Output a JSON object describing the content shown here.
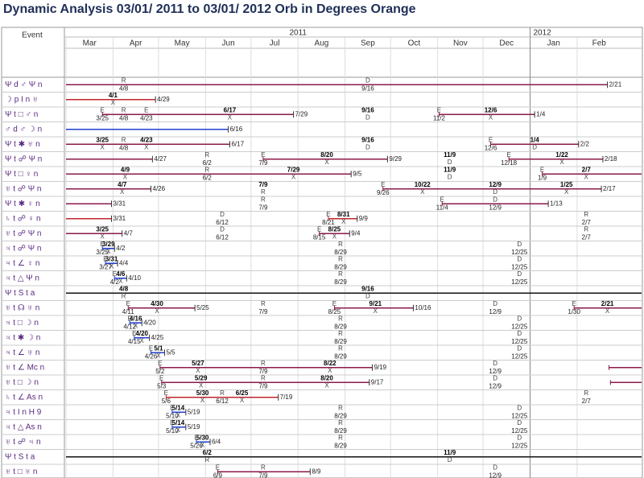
{
  "header": {
    "title": "Dynamic Analysis 03/01/ 2011 to 03/01/ 2012 Orb in Degrees Orange",
    "event_column": "Event",
    "years": [
      "2011",
      "2012"
    ],
    "months": [
      "Mar",
      "Apr",
      "May",
      "Jun",
      "Jul",
      "Aug",
      "Sep",
      "Oct",
      "Nov",
      "Dec",
      "Jan",
      "Feb"
    ]
  },
  "rows": [
    {
      "event": "Ψ d ♂ Ψ n",
      "spans": [
        {
          "from": null,
          "to": "2/21",
          "color": "#8b1a4a"
        }
      ],
      "labels": [
        {
          "letter": "R",
          "date": "4/8",
          "bold": false
        },
        {
          "letter": "D",
          "date": "9/16",
          "bold": false
        }
      ]
    },
    {
      "event": "☽ p I n ♅",
      "spans": [
        {
          "from": null,
          "to": "4/29",
          "color": "#c0272d"
        }
      ],
      "labels": [
        {
          "letter": "X",
          "date": "4/1",
          "bold": true
        }
      ]
    },
    {
      "event": "Ψ t □ ♂ n",
      "spans": [
        {
          "from": "3/25",
          "to": "7/29",
          "color": "#8b1a4a"
        },
        {
          "from": "11/2",
          "to": "1/4",
          "color": "#8b1a4a"
        }
      ],
      "labels": [
        {
          "letter": "E",
          "date": "3/25",
          "bold": false
        },
        {
          "letter": "R",
          "date": "4/8",
          "bold": false
        },
        {
          "letter": "E",
          "date": "4/23",
          "bold": false
        },
        {
          "letter": "X",
          "date": "6/17",
          "bold": true
        },
        {
          "letter": "D",
          "date": "9/16",
          "bold": true
        },
        {
          "letter": "E",
          "date": "11/2",
          "bold": false
        },
        {
          "letter": "X",
          "date": "12/6",
          "bold": true
        }
      ]
    },
    {
      "event": "♂ d ♂ ☽ n",
      "spans": [
        {
          "from": null,
          "to": "6/16",
          "color": "#1f3fd0"
        }
      ],
      "labels": []
    },
    {
      "event": "Ψ t ✱ ♅ n",
      "spans": [
        {
          "from": null,
          "to": "6/17",
          "color": "#8b1a4a"
        },
        {
          "from": "12/6",
          "to": "2/2",
          "color": "#8b1a4a"
        }
      ],
      "labels": [
        {
          "letter": "X",
          "date": "3/25",
          "bold": true
        },
        {
          "letter": "R",
          "date": "4/8",
          "bold": false
        },
        {
          "letter": "X",
          "date": "4/23",
          "bold": true
        },
        {
          "letter": "D",
          "date": "9/16",
          "bold": true
        },
        {
          "letter": "E",
          "date": "12/6",
          "bold": false
        },
        {
          "letter": "D",
          "date": "1/4",
          "bold": true
        }
      ]
    },
    {
      "event": "Ψ t ☍ Ψ n",
      "spans": [
        {
          "from": null,
          "to": "4/27",
          "color": "#8b1a4a"
        },
        {
          "from": "7/9",
          "to": "9/29",
          "color": "#8b1a4a"
        },
        {
          "from": "12/18",
          "to": "2/18",
          "color": "#8b1a4a"
        }
      ],
      "labels": [
        {
          "letter": "R",
          "date": "6/2",
          "bold": false
        },
        {
          "letter": "E",
          "date": "7/9",
          "bold": false
        },
        {
          "letter": "X",
          "date": "8/20",
          "bold": true
        },
        {
          "letter": "D",
          "date": "11/9",
          "bold": true
        },
        {
          "letter": "E",
          "date": "12/18",
          "bold": false
        },
        {
          "letter": "X",
          "date": "1/22",
          "bold": true
        }
      ]
    },
    {
      "event": "Ψ t □ ♀ n",
      "spans": [
        {
          "from": null,
          "to": "9/5",
          "color": "#8b1a4a"
        },
        {
          "from": "1/9",
          "to": null,
          "color": "#8b1a4a"
        }
      ],
      "labels": [
        {
          "letter": "X",
          "date": "4/9",
          "bold": true
        },
        {
          "letter": "R",
          "date": "6/2",
          "bold": false
        },
        {
          "letter": "X",
          "date": "7/29",
          "bold": true
        },
        {
          "letter": "D",
          "date": "11/9",
          "bold": true
        },
        {
          "letter": "E",
          "date": "1/9",
          "bold": false
        },
        {
          "letter": "X",
          "date": "2/7",
          "bold": true
        }
      ]
    },
    {
      "event": "♅ t ☍ Ψ n",
      "spans": [
        {
          "from": null,
          "to": "4/26",
          "color": "#8b1a4a"
        },
        {
          "from": "9/26",
          "to": "2/17",
          "color": "#8b1a4a"
        }
      ],
      "labels": [
        {
          "letter": "X",
          "date": "4/7",
          "bold": true
        },
        {
          "letter": "R",
          "date": "7/9",
          "bold": true
        },
        {
          "letter": "E",
          "date": "9/26",
          "bold": false
        },
        {
          "letter": "X",
          "date": "10/22",
          "bold": true
        },
        {
          "letter": "D",
          "date": "12/9",
          "bold": true
        },
        {
          "letter": "X",
          "date": "1/25",
          "bold": true
        }
      ]
    },
    {
      "event": "Ψ t ✱ ♀ n",
      "spans": [
        {
          "from": null,
          "to": "3/31",
          "color": "#8b1a4a"
        },
        {
          "from": "11/4",
          "to": "1/13",
          "color": "#8b1a4a"
        }
      ],
      "labels": [
        {
          "letter": "R",
          "date": "7/9",
          "bold": false
        },
        {
          "letter": "E",
          "date": "11/4",
          "bold": false
        },
        {
          "letter": "D",
          "date": "12/9",
          "bold": false
        }
      ]
    },
    {
      "event": "♄ t ☍ ♀ n",
      "spans": [
        {
          "from": null,
          "to": "3/31",
          "color": "#c0272d"
        },
        {
          "from": "8/21",
          "to": "9/9",
          "color": "#c0272d"
        }
      ],
      "labels": [
        {
          "letter": "D",
          "date": "6/12",
          "bold": false
        },
        {
          "letter": "E",
          "date": "8/21",
          "bold": false
        },
        {
          "letter": "X",
          "date": "8/31",
          "bold": true
        },
        {
          "letter": "R",
          "date": "2/7",
          "bold": false
        }
      ]
    },
    {
      "event": "♅ t ☍ Ψ n",
      "spans": [
        {
          "from": null,
          "to": "4/7",
          "color": "#8b1a4a"
        },
        {
          "from": "8/15",
          "to": "9/4",
          "color": "#8b1a4a"
        }
      ],
      "labels": [
        {
          "letter": "X",
          "date": "3/25",
          "bold": true
        },
        {
          "letter": "D",
          "date": "6/12",
          "bold": false
        },
        {
          "letter": "E",
          "date": "8/15",
          "bold": false
        },
        {
          "letter": "X",
          "date": "8/25",
          "bold": true
        },
        {
          "letter": "R",
          "date": "2/7",
          "bold": false
        }
      ]
    },
    {
      "event": "♃ t ☍ Ψ n",
      "spans": [
        {
          "from": "3/25",
          "to": "4/2",
          "color": "#1f3fd0"
        }
      ],
      "labels": [
        {
          "letter": "E",
          "date": "3/25",
          "bold": false
        },
        {
          "letter": "X",
          "date": "3/29",
          "bold": true
        },
        {
          "letter": "R",
          "date": "8/29",
          "bold": false
        },
        {
          "letter": "D",
          "date": "12/25",
          "bold": false
        }
      ]
    },
    {
      "event": "♃ t ∠ ♀ n",
      "spans": [
        {
          "from": "3/27",
          "to": "4/4",
          "color": "#1f3fd0"
        }
      ],
      "labels": [
        {
          "letter": "E",
          "date": "3/27",
          "bold": false
        },
        {
          "letter": "X",
          "date": "3/31",
          "bold": true
        },
        {
          "letter": "R",
          "date": "8/29",
          "bold": false
        },
        {
          "letter": "D",
          "date": "12/25",
          "bold": false
        }
      ]
    },
    {
      "event": "♃ t △ Ψ n",
      "spans": [
        {
          "from": "4/2",
          "to": "4/10",
          "color": "#1f3fd0"
        }
      ],
      "labels": [
        {
          "letter": "E",
          "date": "4/2",
          "bold": false
        },
        {
          "letter": "X",
          "date": "4/6",
          "bold": true
        },
        {
          "letter": "R",
          "date": "8/29",
          "bold": false
        },
        {
          "letter": "D",
          "date": "12/25",
          "bold": false
        }
      ]
    },
    {
      "event": "Ψ t S t a",
      "spans": [
        {
          "from": null,
          "to": null,
          "color": "#111111"
        }
      ],
      "labels": [
        {
          "letter": "R",
          "date": "4/8",
          "bold": true
        },
        {
          "letter": "D",
          "date": "9/16",
          "bold": true
        }
      ]
    },
    {
      "event": "♅ t ☊ ♅ n",
      "spans": [
        {
          "from": "4/11",
          "to": "5/25",
          "color": "#8b1a4a"
        },
        {
          "from": "8/25",
          "to": "10/16",
          "color": "#8b1a4a"
        },
        {
          "from": "1/30",
          "to": null,
          "color": "#8b1a4a"
        }
      ],
      "labels": [
        {
          "letter": "E",
          "date": "4/11",
          "bold": false
        },
        {
          "letter": "X",
          "date": "4/30",
          "bold": true
        },
        {
          "letter": "R",
          "date": "7/9",
          "bold": false
        },
        {
          "letter": "E",
          "date": "8/25",
          "bold": false
        },
        {
          "letter": "X",
          "date": "9/21",
          "bold": true
        },
        {
          "letter": "D",
          "date": "12/9",
          "bold": false
        },
        {
          "letter": "E",
          "date": "1/30",
          "bold": false
        },
        {
          "letter": "X",
          "date": "2/21",
          "bold": true
        }
      ]
    },
    {
      "event": "♃ t □ ☽ n",
      "spans": [
        {
          "from": "4/12",
          "to": "4/20",
          "color": "#1f3fd0"
        }
      ],
      "labels": [
        {
          "letter": "E",
          "date": "4/12",
          "bold": false
        },
        {
          "letter": "X",
          "date": "4/16",
          "bold": true
        },
        {
          "letter": "R",
          "date": "8/29",
          "bold": false
        },
        {
          "letter": "D",
          "date": "12/25",
          "bold": false
        }
      ]
    },
    {
      "event": "♃ t ✱ ☽ n",
      "spans": [
        {
          "from": "4/15",
          "to": "4/25",
          "color": "#1f3fd0"
        }
      ],
      "labels": [
        {
          "letter": "E",
          "date": "4/15",
          "bold": false
        },
        {
          "letter": "X",
          "date": "4/20",
          "bold": true
        },
        {
          "letter": "R",
          "date": "8/29",
          "bold": false
        },
        {
          "letter": "D",
          "date": "12/25",
          "bold": false
        }
      ]
    },
    {
      "event": "♃ t ∠ ♅ n",
      "spans": [
        {
          "from": "4/26",
          "to": "5/5",
          "color": "#1f3fd0"
        }
      ],
      "labels": [
        {
          "letter": "E",
          "date": "4/26",
          "bold": false
        },
        {
          "letter": "X",
          "date": "5/1",
          "bold": true
        },
        {
          "letter": "R",
          "date": "8/29",
          "bold": false
        },
        {
          "letter": "D",
          "date": "12/25",
          "bold": false
        }
      ]
    },
    {
      "event": "♅ t ∠ Mc n",
      "spans": [
        {
          "from": "5/2",
          "to": "9/19",
          "color": "#8b1a4a"
        },
        {
          "from": "2/22",
          "to": null,
          "color": "#8b1a4a"
        }
      ],
      "labels": [
        {
          "letter": "E",
          "date": "5/2",
          "bold": false
        },
        {
          "letter": "X",
          "date": "5/27",
          "bold": true
        },
        {
          "letter": "R",
          "date": "7/9",
          "bold": false
        },
        {
          "letter": "X",
          "date": "8/22",
          "bold": true
        },
        {
          "letter": "D",
          "date": "12/9",
          "bold": false
        }
      ]
    },
    {
      "event": "♅ t □ ☽ n",
      "spans": [
        {
          "from": "5/3",
          "to": "9/17",
          "color": "#8b1a4a"
        },
        {
          "from": "2/23",
          "to": null,
          "color": "#8b1a4a"
        }
      ],
      "labels": [
        {
          "letter": "E",
          "date": "5/3",
          "bold": false
        },
        {
          "letter": "X",
          "date": "5/29",
          "bold": true
        },
        {
          "letter": "R",
          "date": "7/9",
          "bold": false
        },
        {
          "letter": "X",
          "date": "8/20",
          "bold": true
        },
        {
          "letter": "D",
          "date": "12/9",
          "bold": false
        }
      ]
    },
    {
      "event": "♄ t ∠ As n",
      "spans": [
        {
          "from": "5/6",
          "to": "7/19",
          "color": "#c0272d"
        }
      ],
      "labels": [
        {
          "letter": "E",
          "date": "5/6",
          "bold": false
        },
        {
          "letter": "X",
          "date": "5/30",
          "bold": true
        },
        {
          "letter": "R",
          "date": "6/12",
          "bold": false
        },
        {
          "letter": "X",
          "date": "6/25",
          "bold": true
        },
        {
          "letter": "R",
          "date": "2/7",
          "bold": false
        }
      ]
    },
    {
      "event": "♃ t I n H 9",
      "spans": [
        {
          "from": "5/10",
          "to": "5/19",
          "color": "#1f3fd0"
        }
      ],
      "labels": [
        {
          "letter": "E",
          "date": "5/10",
          "bold": false
        },
        {
          "letter": "X",
          "date": "5/14",
          "bold": true
        },
        {
          "letter": "R",
          "date": "8/29",
          "bold": false
        },
        {
          "letter": "D",
          "date": "12/25",
          "bold": false
        }
      ]
    },
    {
      "event": "♃ t △ As n",
      "spans": [
        {
          "from": "5/10",
          "to": "5/19",
          "color": "#1f3fd0"
        }
      ],
      "labels": [
        {
          "letter": "E",
          "date": "5/10",
          "bold": false
        },
        {
          "letter": "X",
          "date": "5/14",
          "bold": true
        },
        {
          "letter": "R",
          "date": "8/29",
          "bold": false
        },
        {
          "letter": "D",
          "date": "12/25",
          "bold": false
        }
      ]
    },
    {
      "event": "♅ t ☍ ♃ n",
      "spans": [
        {
          "from": "5/26",
          "to": "6/4",
          "color": "#1f3fd0"
        }
      ],
      "labels": [
        {
          "letter": "E",
          "date": "5/26",
          "bold": false
        },
        {
          "letter": "X",
          "date": "5/30",
          "bold": true
        },
        {
          "letter": "R",
          "date": "8/29",
          "bold": false
        },
        {
          "letter": "D",
          "date": "12/25",
          "bold": false
        }
      ]
    },
    {
      "event": "Ψ t S t a",
      "spans": [
        {
          "from": null,
          "to": null,
          "color": "#111111"
        }
      ],
      "labels": [
        {
          "letter": "R",
          "date": "6/2",
          "bold": true
        },
        {
          "letter": "D",
          "date": "11/9",
          "bold": true
        }
      ]
    },
    {
      "event": "♅ t □ ♅ n",
      "spans": [
        {
          "from": "6/9",
          "to": "8/9",
          "color": "#8b1a4a"
        }
      ],
      "labels": [
        {
          "letter": "E",
          "date": "6/9",
          "bold": false
        },
        {
          "letter": "R",
          "date": "7/9",
          "bold": false
        },
        {
          "letter": "D",
          "date": "12/9",
          "bold": false
        }
      ]
    }
  ]
}
